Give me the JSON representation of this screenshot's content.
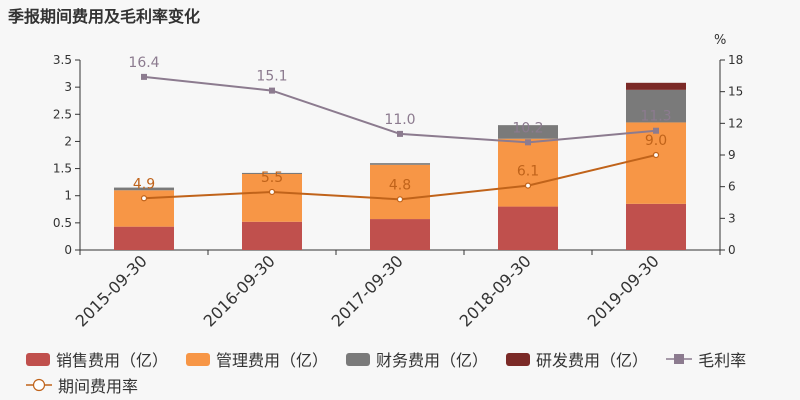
{
  "page": {
    "title": "季报期间费用及毛利率变化"
  },
  "chart_data": {
    "type": "bar",
    "stacked": true,
    "categories": [
      "2015-09-30",
      "2016-09-30",
      "2017-09-30",
      "2018-09-30",
      "2019-09-30"
    ],
    "series": [
      {
        "name": "销售费用（亿）",
        "type": "bar",
        "axis": "left",
        "color": "#c0504d",
        "values": [
          0.43,
          0.52,
          0.57,
          0.8,
          0.85
        ]
      },
      {
        "name": "管理费用（亿）",
        "type": "bar",
        "axis": "left",
        "color": "#f79646",
        "values": [
          0.67,
          0.88,
          1.0,
          1.25,
          1.5
        ]
      },
      {
        "name": "财务费用（亿）",
        "type": "bar",
        "axis": "left",
        "color": "#7a7a7a",
        "values": [
          0.05,
          0.02,
          0.03,
          0.25,
          0.6
        ]
      },
      {
        "name": "研发费用（亿）",
        "type": "bar",
        "axis": "left",
        "color": "#7b2a27",
        "values": [
          0,
          0,
          0,
          0,
          0.13
        ]
      },
      {
        "name": "毛利率",
        "type": "line",
        "axis": "right",
        "color": "#8c7b8f",
        "marker": "square",
        "values": [
          16.4,
          15.1,
          11.0,
          10.2,
          11.3
        ],
        "labels": [
          "16.4",
          "15.1",
          "11.0",
          "10.2",
          "11.3"
        ]
      },
      {
        "name": "期间费用率",
        "type": "line",
        "axis": "right",
        "color": "#c0631a",
        "marker": "circle",
        "values": [
          4.9,
          5.5,
          4.8,
          6.1,
          9.0
        ],
        "labels": [
          "4.9",
          "5.5",
          "4.8",
          "6.1",
          "9.0"
        ]
      }
    ],
    "y_left": {
      "min": 0,
      "max": 3.5,
      "ticks": [
        "0",
        "0.5",
        "1",
        "1.5",
        "2",
        "2.5",
        "3",
        "3.5"
      ]
    },
    "y_right": {
      "min": 0,
      "max": 18,
      "unit": "%",
      "ticks": [
        "0",
        "3",
        "6",
        "9",
        "12",
        "15",
        "18"
      ]
    },
    "grid": false,
    "legend_position": "bottom"
  }
}
